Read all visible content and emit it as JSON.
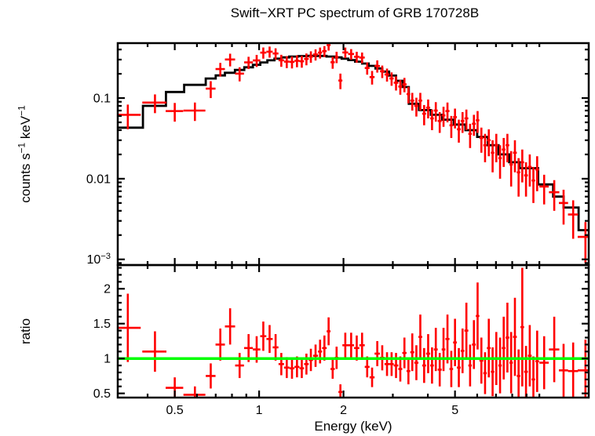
{
  "title": "Swift−XRT PC spectrum of GRB 170728B",
  "colors": {
    "background": "#ffffff",
    "data": "#ff0000",
    "model": "#000000",
    "reference": "#00ff00",
    "axis": "#000000"
  },
  "chart_data": {
    "type": "scatter",
    "title": "Swift−XRT PC spectrum of GRB 170728B",
    "legend": "none",
    "grid": false,
    "x_axis": {
      "label": "Energy (keV)",
      "scale": "log",
      "range": [
        0.313,
        15.0
      ],
      "major_ticks": [
        0.5,
        1,
        2,
        5
      ],
      "major_tick_labels": [
        "0.5",
        "1",
        "2",
        "5"
      ],
      "minor_ticks": [
        0.4,
        0.6,
        0.7,
        0.8,
        0.9,
        3,
        4,
        6,
        7,
        8,
        9,
        10
      ]
    },
    "top_panel": {
      "ylabel": "counts s^−1 keV^−1",
      "yscale": "log",
      "yrange": [
        0.00085,
        0.48
      ],
      "major_ticks": [
        0.1,
        0.01,
        0.001
      ],
      "major_tick_labels": [
        "0.1",
        "0.01",
        "10^−3"
      ],
      "series_names": [
        "data-with-errors",
        "model-histogram"
      ],
      "model_steps": [
        [
          0.305,
          0.385,
          0.043
        ],
        [
          0.385,
          0.465,
          0.08
        ],
        [
          0.465,
          0.54,
          0.119
        ],
        [
          0.54,
          0.645,
          0.146
        ],
        [
          0.645,
          0.7,
          0.175
        ],
        [
          0.7,
          0.755,
          0.191
        ],
        [
          0.755,
          0.82,
          0.206
        ],
        [
          0.82,
          0.885,
          0.223
        ],
        [
          0.885,
          0.95,
          0.241
        ],
        [
          0.95,
          1.01,
          0.259
        ],
        [
          1.01,
          1.07,
          0.277
        ],
        [
          1.07,
          1.135,
          0.294
        ],
        [
          1.135,
          1.2,
          0.308
        ],
        [
          1.2,
          1.28,
          0.319
        ],
        [
          1.28,
          1.38,
          0.327
        ],
        [
          1.38,
          1.5,
          0.332
        ],
        [
          1.5,
          1.62,
          0.334
        ],
        [
          1.62,
          1.74,
          0.333
        ],
        [
          1.74,
          1.86,
          0.327
        ],
        [
          1.86,
          1.97,
          0.319
        ],
        [
          1.97,
          2.08,
          0.308
        ],
        [
          2.08,
          2.2,
          0.296
        ],
        [
          2.2,
          2.33,
          0.283
        ],
        [
          2.33,
          2.46,
          0.268
        ],
        [
          2.46,
          2.6,
          0.251
        ],
        [
          2.6,
          2.75,
          0.233
        ],
        [
          2.75,
          2.91,
          0.213
        ],
        [
          2.91,
          3.08,
          0.19
        ],
        [
          3.08,
          3.25,
          0.164
        ],
        [
          3.25,
          3.42,
          0.137
        ],
        [
          3.42,
          3.72,
          0.085
        ],
        [
          3.72,
          4.1,
          0.071
        ],
        [
          4.1,
          4.5,
          0.062
        ],
        [
          4.5,
          4.95,
          0.054
        ],
        [
          4.95,
          5.45,
          0.047
        ],
        [
          5.45,
          6.0,
          0.04
        ],
        [
          6.0,
          6.55,
          0.033
        ],
        [
          6.55,
          7.15,
          0.026
        ],
        [
          7.15,
          7.8,
          0.02
        ],
        [
          7.8,
          8.5,
          0.016
        ],
        [
          8.5,
          9.9,
          0.0135
        ],
        [
          9.9,
          11.2,
          0.0085
        ],
        [
          11.2,
          12.2,
          0.006
        ],
        [
          12.2,
          13.8,
          0.0044
        ],
        [
          13.8,
          15.5,
          0.0023
        ]
      ],
      "points": [
        [
          0.34,
          0.038,
          0.062,
          0.021
        ],
        [
          0.425,
          0.042,
          0.088,
          0.023
        ],
        [
          0.5,
          0.036,
          0.069,
          0.018
        ],
        [
          0.59,
          0.053,
          0.07,
          0.018
        ],
        [
          0.672,
          0.027,
          0.131,
          0.031
        ],
        [
          0.727,
          0.028,
          0.229,
          0.044
        ],
        [
          0.788,
          0.033,
          0.301,
          0.054
        ],
        [
          0.852,
          0.031,
          0.201,
          0.04
        ],
        [
          0.917,
          0.033,
          0.277,
          0.048
        ],
        [
          0.98,
          0.03,
          0.293,
          0.05
        ],
        [
          1.035,
          0.026,
          0.366,
          0.058
        ],
        [
          1.09,
          0.028,
          0.376,
          0.059
        ],
        [
          1.145,
          0.027,
          0.357,
          0.057
        ],
        [
          1.2,
          0.027,
          0.294,
          0.05
        ],
        [
          1.255,
          0.028,
          0.283,
          0.048
        ],
        [
          1.31,
          0.027,
          0.281,
          0.048
        ],
        [
          1.365,
          0.028,
          0.29,
          0.049
        ],
        [
          1.42,
          0.027,
          0.286,
          0.048
        ],
        [
          1.475,
          0.028,
          0.306,
          0.051
        ],
        [
          1.53,
          0.027,
          0.327,
          0.053
        ],
        [
          1.59,
          0.032,
          0.347,
          0.055
        ],
        [
          1.65,
          0.028,
          0.366,
          0.057
        ],
        [
          1.71,
          0.032,
          0.382,
          0.059
        ],
        [
          1.77,
          0.028,
          0.454,
          0.066
        ],
        [
          1.83,
          0.032,
          0.278,
          0.047
        ],
        [
          1.89,
          0.028,
          0.323,
          0.052
        ],
        [
          1.95,
          0.032,
          0.165,
          0.036
        ],
        [
          2.03,
          0.048,
          0.368,
          0.055
        ],
        [
          2.13,
          0.052,
          0.352,
          0.053
        ],
        [
          2.23,
          0.048,
          0.325,
          0.05
        ],
        [
          2.33,
          0.052,
          0.318,
          0.049
        ],
        [
          2.43,
          0.048,
          0.236,
          0.041
        ],
        [
          2.53,
          0.052,
          0.182,
          0.035
        ],
        [
          2.64,
          0.058,
          0.25,
          0.043
        ],
        [
          2.75,
          0.052,
          0.215,
          0.038
        ],
        [
          2.86,
          0.058,
          0.196,
          0.036
        ],
        [
          2.97,
          0.052,
          0.175,
          0.033
        ],
        [
          3.08,
          0.058,
          0.155,
          0.031
        ],
        [
          3.19,
          0.052,
          0.139,
          0.029
        ],
        [
          3.3,
          0.058,
          0.148,
          0.03
        ],
        [
          3.41,
          0.052,
          0.112,
          0.026
        ],
        [
          3.52,
          0.058,
          0.093,
          0.023
        ],
        [
          3.64,
          0.062,
          0.08,
          0.021
        ],
        [
          3.76,
          0.058,
          0.093,
          0.023
        ],
        [
          3.88,
          0.062,
          0.064,
          0.018
        ],
        [
          4.01,
          0.068,
          0.076,
          0.02
        ],
        [
          4.14,
          0.062,
          0.056,
          0.016
        ],
        [
          4.27,
          0.068,
          0.07,
          0.019
        ],
        [
          4.41,
          0.072,
          0.052,
          0.015
        ],
        [
          4.55,
          0.068,
          0.061,
          0.017
        ],
        [
          4.7,
          0.078,
          0.069,
          0.019
        ],
        [
          4.85,
          0.072,
          0.046,
          0.014
        ],
        [
          5.0,
          0.078,
          0.058,
          0.016
        ],
        [
          5.16,
          0.082,
          0.041,
          0.013
        ],
        [
          5.32,
          0.078,
          0.052,
          0.015
        ],
        [
          5.49,
          0.088,
          0.056,
          0.016
        ],
        [
          5.66,
          0.082,
          0.036,
          0.012
        ],
        [
          5.84,
          0.092,
          0.048,
          0.014
        ],
        [
          6.02,
          0.088,
          0.053,
          0.016
        ],
        [
          6.21,
          0.098,
          0.032,
          0.011
        ],
        [
          6.4,
          0.092,
          0.026,
          0.01
        ],
        [
          6.6,
          0.102,
          0.03,
          0.011
        ],
        [
          6.81,
          0.098,
          0.021,
          0.009
        ],
        [
          7.02,
          0.108,
          0.026,
          0.01
        ],
        [
          7.24,
          0.102,
          0.018,
          0.008
        ],
        [
          7.46,
          0.112,
          0.023,
          0.009
        ],
        [
          7.69,
          0.118,
          0.026,
          0.01
        ],
        [
          7.93,
          0.112,
          0.015,
          0.007
        ],
        [
          8.18,
          0.128,
          0.021,
          0.009
        ],
        [
          8.43,
          0.122,
          0.012,
          0.006
        ],
        [
          8.69,
          0.132,
          0.016,
          0.007
        ],
        [
          8.96,
          0.138,
          0.011,
          0.005
        ],
        [
          9.24,
          0.142,
          0.014,
          0.006
        ],
        [
          9.52,
          0.138,
          0.0095,
          0.0045
        ],
        [
          9.82,
          0.152,
          0.013,
          0.006
        ],
        [
          10.4,
          0.4,
          0.008,
          0.0032
        ],
        [
          11.3,
          0.48,
          0.0068,
          0.0028
        ],
        [
          12.2,
          0.46,
          0.005,
          0.0023
        ],
        [
          13.2,
          0.55,
          0.0036,
          0.0018
        ],
        [
          14.6,
          0.9,
          0.0019,
          0.001
        ]
      ]
    },
    "bottom_panel": {
      "ylabel": "ratio",
      "yscale": "linear",
      "yrange": [
        0.44,
        2.34
      ],
      "major_ticks": [
        0.5,
        1,
        1.5,
        2
      ],
      "major_tick_labels": [
        "0.5",
        "1",
        "1.5",
        "2"
      ],
      "minor_tick_step": 0.1,
      "reference_line": 1,
      "points": [
        [
          0.34,
          0.038,
          1.44,
          0.49
        ],
        [
          0.425,
          0.042,
          1.1,
          0.29
        ],
        [
          0.5,
          0.036,
          0.58,
          0.15
        ],
        [
          0.59,
          0.053,
          0.48,
          0.12
        ],
        [
          0.672,
          0.027,
          0.75,
          0.18
        ],
        [
          0.727,
          0.028,
          1.2,
          0.23
        ],
        [
          0.788,
          0.033,
          1.46,
          0.26
        ],
        [
          0.852,
          0.031,
          0.9,
          0.18
        ],
        [
          0.917,
          0.033,
          1.15,
          0.2
        ],
        [
          0.98,
          0.03,
          1.13,
          0.19
        ],
        [
          1.035,
          0.026,
          1.32,
          0.21
        ],
        [
          1.09,
          0.028,
          1.28,
          0.2
        ],
        [
          1.145,
          0.027,
          1.16,
          0.19
        ],
        [
          1.2,
          0.027,
          0.92,
          0.16
        ],
        [
          1.255,
          0.028,
          0.87,
          0.15
        ],
        [
          1.31,
          0.027,
          0.86,
          0.15
        ],
        [
          1.365,
          0.028,
          0.88,
          0.15
        ],
        [
          1.42,
          0.027,
          0.86,
          0.14
        ],
        [
          1.475,
          0.028,
          0.92,
          0.15
        ],
        [
          1.53,
          0.027,
          0.98,
          0.16
        ],
        [
          1.59,
          0.032,
          1.04,
          0.16
        ],
        [
          1.65,
          0.028,
          1.1,
          0.17
        ],
        [
          1.71,
          0.032,
          1.15,
          0.18
        ],
        [
          1.77,
          0.028,
          1.39,
          0.2
        ],
        [
          1.83,
          0.032,
          0.85,
          0.14
        ],
        [
          1.89,
          0.028,
          1.01,
          0.16
        ],
        [
          1.95,
          0.032,
          0.52,
          0.11
        ],
        [
          2.03,
          0.048,
          1.19,
          0.18
        ],
        [
          2.13,
          0.052,
          1.19,
          0.18
        ],
        [
          2.23,
          0.048,
          1.15,
          0.18
        ],
        [
          2.33,
          0.052,
          1.19,
          0.18
        ],
        [
          2.43,
          0.048,
          0.88,
          0.15
        ],
        [
          2.53,
          0.052,
          0.73,
          0.14
        ],
        [
          2.64,
          0.058,
          1.07,
          0.18
        ],
        [
          2.75,
          0.052,
          1.01,
          0.18
        ],
        [
          2.86,
          0.058,
          0.92,
          0.17
        ],
        [
          2.97,
          0.052,
          0.92,
          0.17
        ],
        [
          3.08,
          0.058,
          0.9,
          0.18
        ],
        [
          3.19,
          0.052,
          0.85,
          0.18
        ],
        [
          3.3,
          0.058,
          1.08,
          0.22
        ],
        [
          3.41,
          0.052,
          0.82,
          0.19
        ],
        [
          3.52,
          0.058,
          1.09,
          0.27
        ],
        [
          3.64,
          0.062,
          0.94,
          0.25
        ],
        [
          3.76,
          0.058,
          1.31,
          0.32
        ],
        [
          3.88,
          0.062,
          0.9,
          0.25
        ],
        [
          4.01,
          0.068,
          1.07,
          0.28
        ],
        [
          4.14,
          0.062,
          0.9,
          0.26
        ],
        [
          4.27,
          0.068,
          1.13,
          0.31
        ],
        [
          4.41,
          0.072,
          0.84,
          0.24
        ],
        [
          4.55,
          0.068,
          1.13,
          0.31
        ],
        [
          4.7,
          0.078,
          1.28,
          0.35
        ],
        [
          4.85,
          0.072,
          0.85,
          0.26
        ],
        [
          5.0,
          0.078,
          1.23,
          0.34
        ],
        [
          5.16,
          0.082,
          0.87,
          0.28
        ],
        [
          5.32,
          0.078,
          1.11,
          0.32
        ],
        [
          5.49,
          0.088,
          1.4,
          0.4
        ],
        [
          5.66,
          0.082,
          0.9,
          0.3
        ],
        [
          5.84,
          0.092,
          1.2,
          0.35
        ],
        [
          6.02,
          0.088,
          1.61,
          0.48
        ],
        [
          6.21,
          0.098,
          0.97,
          0.33
        ],
        [
          6.4,
          0.092,
          0.79,
          0.3
        ],
        [
          6.6,
          0.102,
          1.15,
          0.42
        ],
        [
          6.81,
          0.098,
          0.81,
          0.35
        ],
        [
          7.02,
          0.108,
          1.0,
          0.38
        ],
        [
          7.24,
          0.102,
          0.9,
          0.4
        ],
        [
          7.46,
          0.112,
          1.15,
          0.45
        ],
        [
          7.69,
          0.118,
          1.3,
          0.5
        ],
        [
          7.93,
          0.112,
          0.94,
          0.44
        ],
        [
          8.18,
          0.128,
          1.31,
          0.56
        ],
        [
          8.43,
          0.122,
          0.75,
          0.38
        ],
        [
          8.69,
          0.132,
          1.45,
          0.85
        ],
        [
          8.96,
          0.138,
          0.81,
          0.37
        ],
        [
          9.24,
          0.142,
          1.04,
          0.44
        ],
        [
          9.52,
          0.138,
          0.7,
          0.33
        ],
        [
          9.82,
          0.152,
          0.96,
          0.44
        ],
        [
          10.4,
          0.4,
          0.94,
          0.38
        ],
        [
          11.3,
          0.48,
          1.13,
          0.47
        ],
        [
          12.2,
          0.46,
          0.83,
          0.38
        ],
        [
          13.2,
          0.55,
          0.82,
          0.41
        ],
        [
          14.6,
          0.9,
          0.83,
          0.44
        ]
      ]
    }
  }
}
